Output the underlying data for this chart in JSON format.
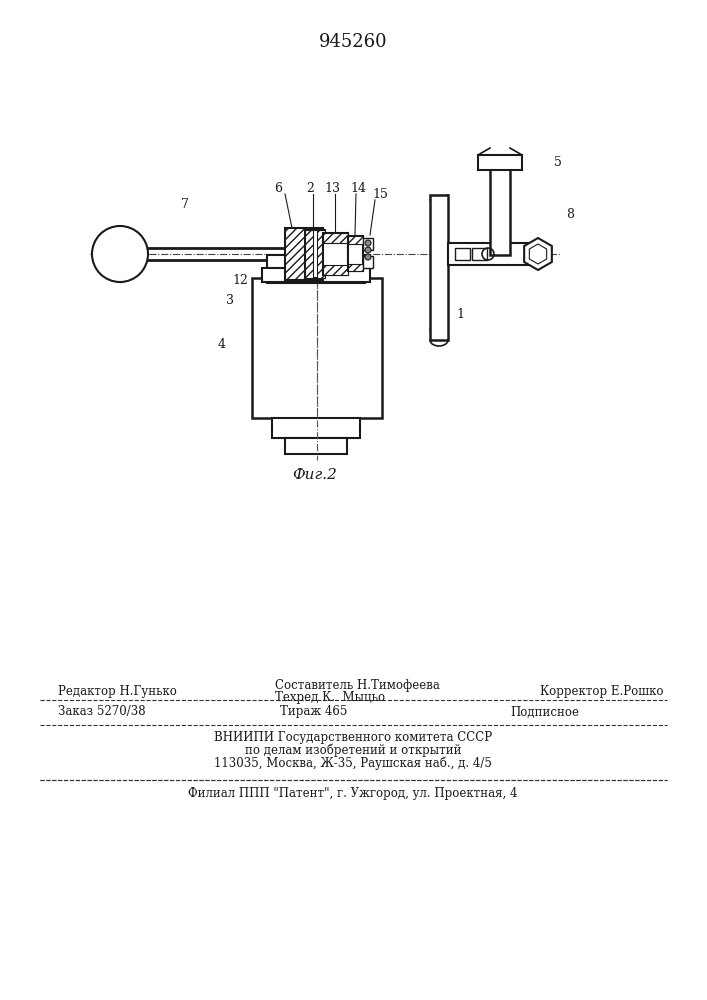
{
  "title": "945260",
  "fig_label": "Фиг.2",
  "background_color": "#ffffff",
  "line_color": "#1a1a1a",
  "hatch_color": "#1a1a1a",
  "footer_lines": [
    "Редактор Н.Гунько          Составитель Н.Тимофеева          Корректор Е.Рошко",
    "                              Техред К.  Мыцьо",
    "Заказ 5270/38          Тираж 465          Подписное",
    "ВНИИПИ Государственного комитета СССР",
    "по делам изобретений и открытий",
    "113035, Москва, Ж-35, Раушская наб., д. 4/5",
    "Филиал ППП \"Патент\", г. Ужгород, ул. Проектная, 4"
  ]
}
